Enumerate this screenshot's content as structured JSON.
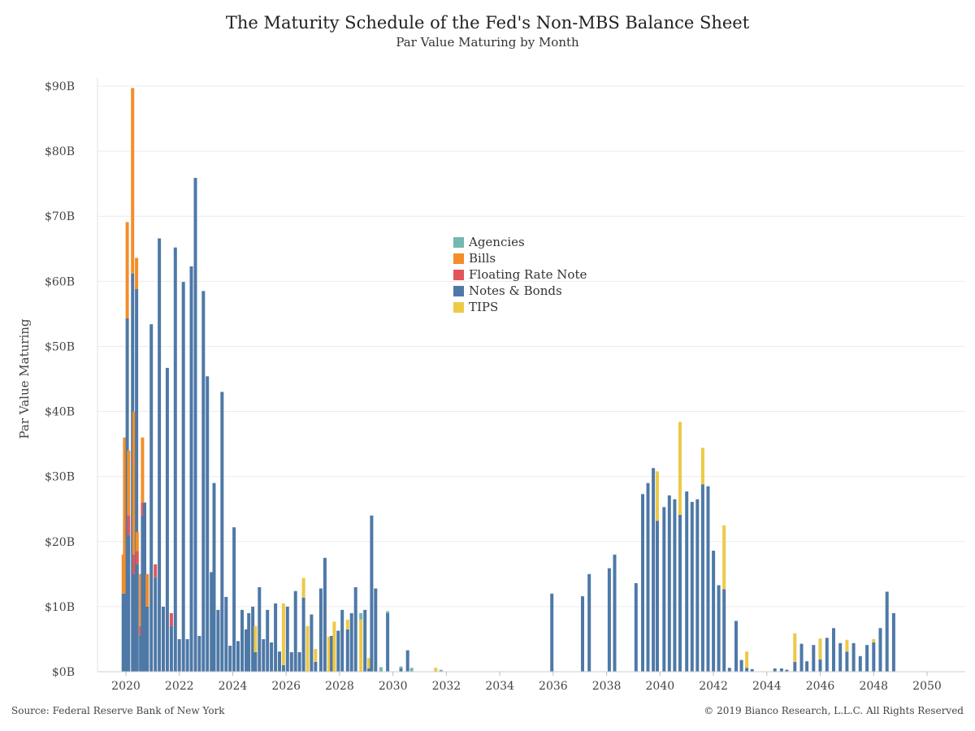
{
  "chart_data": {
    "type": "bar",
    "stacked": true,
    "title": "The Maturity Schedule of the Fed's Non-MBS Balance Sheet",
    "subtitle": "Par Value Maturing by Month",
    "ylabel": "Par Value Maturing",
    "xlabel": "",
    "ylim": [
      0,
      90
    ],
    "yticks": [
      "$0B",
      "$10B",
      "$20B",
      "$30B",
      "$40B",
      "$50B",
      "$60B",
      "$70B",
      "$80B",
      "$90B"
    ],
    "xticks": [
      "2020",
      "2022",
      "2024",
      "2026",
      "2028",
      "2030",
      "2032",
      "2034",
      "2036",
      "2038",
      "2040",
      "2042",
      "2044",
      "2046",
      "2048",
      "2050"
    ],
    "grid": "horizontal",
    "legend_position": "center",
    "series": [
      {
        "name": "Agencies",
        "color": "#76b7b2"
      },
      {
        "name": "Bills",
        "color": "#f28e2b"
      },
      {
        "name": "Floating Rate Note",
        "color": "#e15759"
      },
      {
        "name": "Notes & Bonds",
        "color": "#4e79a7"
      },
      {
        "name": "TIPS",
        "color": "#edc948"
      }
    ],
    "x_units": "year (decimal)",
    "bars": [
      {
        "x": 2019.9,
        "Bills": 6.0,
        "Notes & Bonds": 12.0
      },
      {
        "x": 2019.95,
        "Bills": 24.0,
        "Notes & Bonds": 12.0
      },
      {
        "x": 2020.05,
        "Bills": 14.8,
        "Notes & Bonds": 54.3
      },
      {
        "x": 2020.1,
        "Bills": 10.0,
        "Floating Rate Note": 3.0,
        "Notes & Bonds": 21.0
      },
      {
        "x": 2020.25,
        "Notes & Bonds": 61.2,
        "Bills": 28.5
      },
      {
        "x": 2020.3,
        "Bills": 22.0,
        "Floating Rate Note": 3.0,
        "Notes & Bonds": 15.0
      },
      {
        "x": 2020.4,
        "Notes & Bonds": 58.8,
        "Bills": 4.8
      },
      {
        "x": 2020.42,
        "Bills": 3.0,
        "Floating Rate Note": 2.0,
        "Notes & Bonds": 16.5
      },
      {
        "x": 2020.55,
        "Bills": 8.0,
        "Floating Rate Note": 1.5,
        "Notes & Bonds": 5.5
      },
      {
        "x": 2020.62,
        "Bills": 10.0,
        "Floating Rate Note": 2.0,
        "Notes & Bonds": 24.0
      },
      {
        "x": 2020.7,
        "Notes & Bonds": 26.0
      },
      {
        "x": 2020.8,
        "Bills": 5.0,
        "Notes & Bonds": 10.0
      },
      {
        "x": 2020.95,
        "Notes & Bonds": 53.4
      },
      {
        "x": 2021.1,
        "Floating Rate Note": 2.0,
        "Notes & Bonds": 14.5
      },
      {
        "x": 2021.25,
        "Notes & Bonds": 66.6
      },
      {
        "x": 2021.4,
        "Notes & Bonds": 10.0
      },
      {
        "x": 2021.55,
        "Notes & Bonds": 46.7
      },
      {
        "x": 2021.7,
        "Floating Rate Note": 2.0,
        "Notes & Bonds": 7.0
      },
      {
        "x": 2021.85,
        "Notes & Bonds": 65.2
      },
      {
        "x": 2022.0,
        "Notes & Bonds": 5.0
      },
      {
        "x": 2022.15,
        "Notes & Bonds": 59.9
      },
      {
        "x": 2022.3,
        "Notes & Bonds": 5.0
      },
      {
        "x": 2022.45,
        "Notes & Bonds": 62.3
      },
      {
        "x": 2022.6,
        "Notes & Bonds": 75.9
      },
      {
        "x": 2022.75,
        "Notes & Bonds": 5.5
      },
      {
        "x": 2022.9,
        "Notes & Bonds": 58.5
      },
      {
        "x": 2023.05,
        "Notes & Bonds": 45.4
      },
      {
        "x": 2023.2,
        "Notes & Bonds": 15.3
      },
      {
        "x": 2023.3,
        "Notes & Bonds": 29.0
      },
      {
        "x": 2023.45,
        "Notes & Bonds": 9.5
      },
      {
        "x": 2023.6,
        "Notes & Bonds": 43.0
      },
      {
        "x": 2023.75,
        "Notes & Bonds": 11.5
      },
      {
        "x": 2023.9,
        "Notes & Bonds": 4.0
      },
      {
        "x": 2024.05,
        "Notes & Bonds": 22.2
      },
      {
        "x": 2024.2,
        "Notes & Bonds": 4.7
      },
      {
        "x": 2024.35,
        "Notes & Bonds": 9.5
      },
      {
        "x": 2024.5,
        "Notes & Bonds": 6.5
      },
      {
        "x": 2024.6,
        "Notes & Bonds": 9.0
      },
      {
        "x": 2024.75,
        "Notes & Bonds": 10.0
      },
      {
        "x": 2024.85,
        "TIPS": 4.0,
        "Notes & Bonds": 3.0
      },
      {
        "x": 2025.0,
        "Notes & Bonds": 13.0
      },
      {
        "x": 2025.15,
        "Notes & Bonds": 5.0
      },
      {
        "x": 2025.3,
        "Notes & Bonds": 9.5
      },
      {
        "x": 2025.45,
        "Notes & Bonds": 4.5
      },
      {
        "x": 2025.6,
        "Notes & Bonds": 10.5
      },
      {
        "x": 2025.75,
        "Notes & Bonds": 3.1
      },
      {
        "x": 2025.9,
        "TIPS": 9.5,
        "Notes & Bonds": 1.0
      },
      {
        "x": 2026.05,
        "Notes & Bonds": 10.0
      },
      {
        "x": 2026.2,
        "Notes & Bonds": 3.0
      },
      {
        "x": 2026.35,
        "Notes & Bonds": 12.4
      },
      {
        "x": 2026.5,
        "Notes & Bonds": 3.0
      },
      {
        "x": 2026.65,
        "TIPS": 3.0,
        "Notes & Bonds": 11.4
      },
      {
        "x": 2026.8,
        "TIPS": 7.0
      },
      {
        "x": 2026.95,
        "Notes & Bonds": 8.8
      },
      {
        "x": 2027.1,
        "TIPS": 2.0,
        "Notes & Bonds": 1.5
      },
      {
        "x": 2027.3,
        "Notes & Bonds": 12.8
      },
      {
        "x": 2027.45,
        "Notes & Bonds": 17.5
      },
      {
        "x": 2027.6,
        "TIPS": 5.4
      },
      {
        "x": 2027.7,
        "Notes & Bonds": 5.5
      },
      {
        "x": 2027.8,
        "TIPS": 7.7
      },
      {
        "x": 2027.95,
        "Notes & Bonds": 6.3
      },
      {
        "x": 2028.1,
        "Notes & Bonds": 9.5
      },
      {
        "x": 2028.3,
        "TIPS": 1.5,
        "Notes & Bonds": 6.5
      },
      {
        "x": 2028.45,
        "Notes & Bonds": 9.0
      },
      {
        "x": 2028.6,
        "Notes & Bonds": 13.0
      },
      {
        "x": 2028.8,
        "TIPS": 8.0,
        "Agencies": 1.0
      },
      {
        "x": 2028.95,
        "Notes & Bonds": 9.5
      },
      {
        "x": 2029.1,
        "TIPS": 1.6,
        "Notes & Bonds": 0.5
      },
      {
        "x": 2029.2,
        "Notes & Bonds": 24.0
      },
      {
        "x": 2029.35,
        "Notes & Bonds": 12.8
      },
      {
        "x": 2029.55,
        "Agencies": 0.7
      },
      {
        "x": 2029.8,
        "Notes & Bonds": 9.0,
        "Agencies": 0.3
      },
      {
        "x": 2030.3,
        "Notes & Bonds": 0.5,
        "Agencies": 0.3
      },
      {
        "x": 2030.55,
        "Notes & Bonds": 3.3
      },
      {
        "x": 2030.7,
        "Agencies": 0.6
      },
      {
        "x": 2031.6,
        "TIPS": 0.6
      },
      {
        "x": 2031.8,
        "Agencies": 0.3
      },
      {
        "x": 2035.95,
        "Notes & Bonds": 12.0
      },
      {
        "x": 2037.1,
        "Notes & Bonds": 11.6
      },
      {
        "x": 2037.35,
        "Notes & Bonds": 15.0
      },
      {
        "x": 2038.1,
        "Notes & Bonds": 15.9
      },
      {
        "x": 2038.3,
        "Notes & Bonds": 18.0
      },
      {
        "x": 2039.1,
        "Notes & Bonds": 13.6
      },
      {
        "x": 2039.35,
        "Notes & Bonds": 27.3
      },
      {
        "x": 2039.55,
        "Notes & Bonds": 29.0
      },
      {
        "x": 2039.75,
        "Notes & Bonds": 31.3
      },
      {
        "x": 2039.9,
        "Notes & Bonds": 23.2,
        "TIPS": 7.6
      },
      {
        "x": 2040.15,
        "Notes & Bonds": 25.3
      },
      {
        "x": 2040.35,
        "Notes & Bonds": 27.1
      },
      {
        "x": 2040.55,
        "Notes & Bonds": 26.5
      },
      {
        "x": 2040.75,
        "TIPS": 14.3,
        "Notes & Bonds": 24.1
      },
      {
        "x": 2041.0,
        "Notes & Bonds": 27.7
      },
      {
        "x": 2041.2,
        "Notes & Bonds": 26.1
      },
      {
        "x": 2041.4,
        "Notes & Bonds": 26.5
      },
      {
        "x": 2041.6,
        "Notes & Bonds": 28.8,
        "TIPS": 5.6
      },
      {
        "x": 2041.8,
        "Notes & Bonds": 28.5
      },
      {
        "x": 2042.0,
        "Notes & Bonds": 18.6
      },
      {
        "x": 2042.2,
        "Notes & Bonds": 13.3
      },
      {
        "x": 2042.4,
        "TIPS": 9.8,
        "Notes & Bonds": 12.7
      },
      {
        "x": 2042.6,
        "Notes & Bonds": 0.6
      },
      {
        "x": 2042.85,
        "Notes & Bonds": 7.8
      },
      {
        "x": 2043.05,
        "Notes & Bonds": 1.8
      },
      {
        "x": 2043.25,
        "TIPS": 2.5,
        "Notes & Bonds": 0.6
      },
      {
        "x": 2043.45,
        "Notes & Bonds": 0.4
      },
      {
        "x": 2044.3,
        "Notes & Bonds": 0.5
      },
      {
        "x": 2044.55,
        "Notes & Bonds": 0.5
      },
      {
        "x": 2044.75,
        "Notes & Bonds": 0.3
      },
      {
        "x": 2045.05,
        "TIPS": 4.4,
        "Notes & Bonds": 1.5
      },
      {
        "x": 2045.3,
        "Notes & Bonds": 4.3
      },
      {
        "x": 2045.5,
        "Notes & Bonds": 1.6
      },
      {
        "x": 2045.75,
        "Notes & Bonds": 4.1
      },
      {
        "x": 2046.0,
        "TIPS": 3.2,
        "Notes & Bonds": 1.9
      },
      {
        "x": 2046.25,
        "Notes & Bonds": 5.2
      },
      {
        "x": 2046.5,
        "Notes & Bonds": 6.7
      },
      {
        "x": 2046.75,
        "Notes & Bonds": 4.4
      },
      {
        "x": 2047.0,
        "TIPS": 1.8,
        "Notes & Bonds": 3.1
      },
      {
        "x": 2047.25,
        "Notes & Bonds": 4.4
      },
      {
        "x": 2047.5,
        "Notes & Bonds": 2.4
      },
      {
        "x": 2047.75,
        "Notes & Bonds": 4.1
      },
      {
        "x": 2048.0,
        "TIPS": 0.5,
        "Notes & Bonds": 4.5
      },
      {
        "x": 2048.25,
        "Notes & Bonds": 6.7
      },
      {
        "x": 2048.5,
        "Notes & Bonds": 12.3
      },
      {
        "x": 2048.75,
        "Notes & Bonds": 9.0
      }
    ]
  },
  "footer": {
    "source": "Source: Federal Reserve Bank of New York",
    "copyright": "© 2019 Bianco Research, L.L.C. All Rights Reserved"
  }
}
